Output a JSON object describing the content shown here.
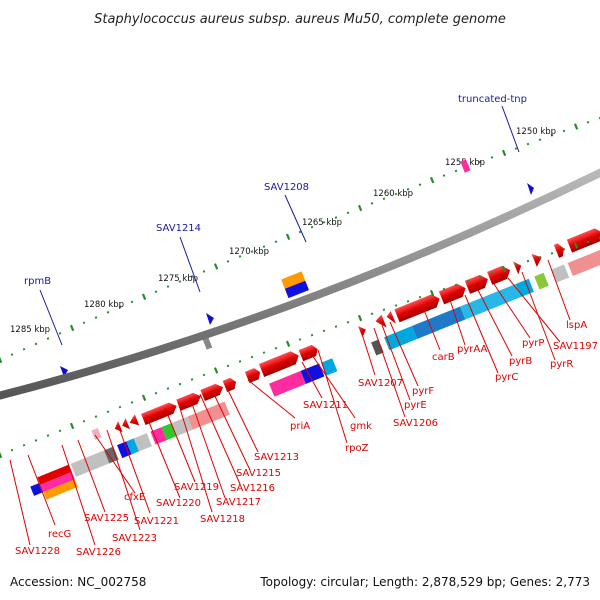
{
  "title": "Staphylococcus aureus subsp. aureus Mu50, complete genome",
  "footer": {
    "accession": "Accession: NC_002758",
    "stats": "Topology: circular; Length: 2,878,529 bp; Genes: 2,773"
  },
  "scale_ticks": [
    "1285 kbp",
    "1280 kbp",
    "1275 kbp",
    "1270 kbp",
    "1265 kbp",
    "1260 kbp",
    "1255 kbp",
    "1250 kbp"
  ],
  "blue_labels": [
    "rpmB",
    "SAV1214",
    "SAV1208",
    "truncated-tnp"
  ],
  "red_labels": [
    "SAV1228",
    "recG",
    "SAV1226",
    "SAV1225",
    "cfxE",
    "SAV1223",
    "SAV1221",
    "SAV1220",
    "SAV1219",
    "SAV1218",
    "SAV1217",
    "SAV1216",
    "SAV1215",
    "SAV1213",
    "priA",
    "SAV1211",
    "gmk",
    "rpoZ",
    "SAV1207",
    "SAV1206",
    "pyrE",
    "pyrF",
    "carB",
    "pyrAA",
    "pyrC",
    "pyrB",
    "pyrP",
    "SAV1197",
    "pyrR",
    "lspA"
  ],
  "colors": {
    "forward_gene": "#e00000",
    "backbone": "#888888",
    "tick_dots": "#2a8a2a",
    "blue_label": "#1a1aa0",
    "red_label": "#e00000"
  }
}
